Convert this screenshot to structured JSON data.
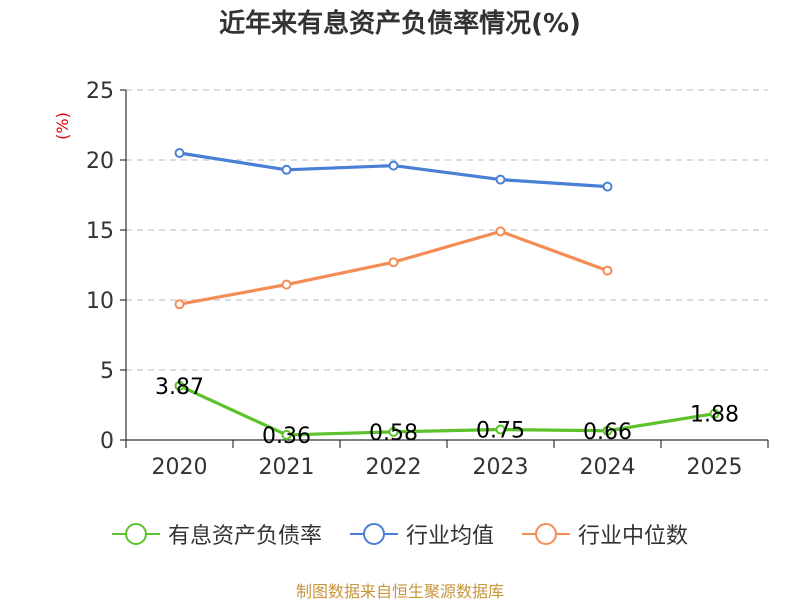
{
  "chart_data": {
    "type": "line",
    "title": "近年来有息资产负债率情况(%)",
    "ylabel": "(%)",
    "xlabel": "",
    "categories": [
      "2020",
      "2021",
      "2022",
      "2023",
      "2024",
      "2025"
    ],
    "ylim": [
      0,
      25
    ],
    "yticks": [
      0,
      5,
      10,
      15,
      20,
      25
    ],
    "grid": "horizontal dashed",
    "legend_position": "bottom",
    "series": [
      {
        "name": "有息资产负债率",
        "color": "#5bc22a",
        "values": [
          3.87,
          0.36,
          0.58,
          0.75,
          0.66,
          1.88
        ],
        "labels": [
          "3.87",
          "0.36",
          "0.58",
          "0.75",
          "0.66",
          "1.88"
        ]
      },
      {
        "name": "行业均值",
        "color": "#4a7fd6",
        "values": [
          20.5,
          19.3,
          19.6,
          18.6,
          18.1,
          null
        ]
      },
      {
        "name": "行业中位数",
        "color": "#f48c55",
        "values": [
          9.7,
          11.1,
          12.7,
          14.9,
          12.1,
          null
        ]
      }
    ]
  },
  "footer": {
    "source": "制图数据来自恒生聚源数据库"
  }
}
